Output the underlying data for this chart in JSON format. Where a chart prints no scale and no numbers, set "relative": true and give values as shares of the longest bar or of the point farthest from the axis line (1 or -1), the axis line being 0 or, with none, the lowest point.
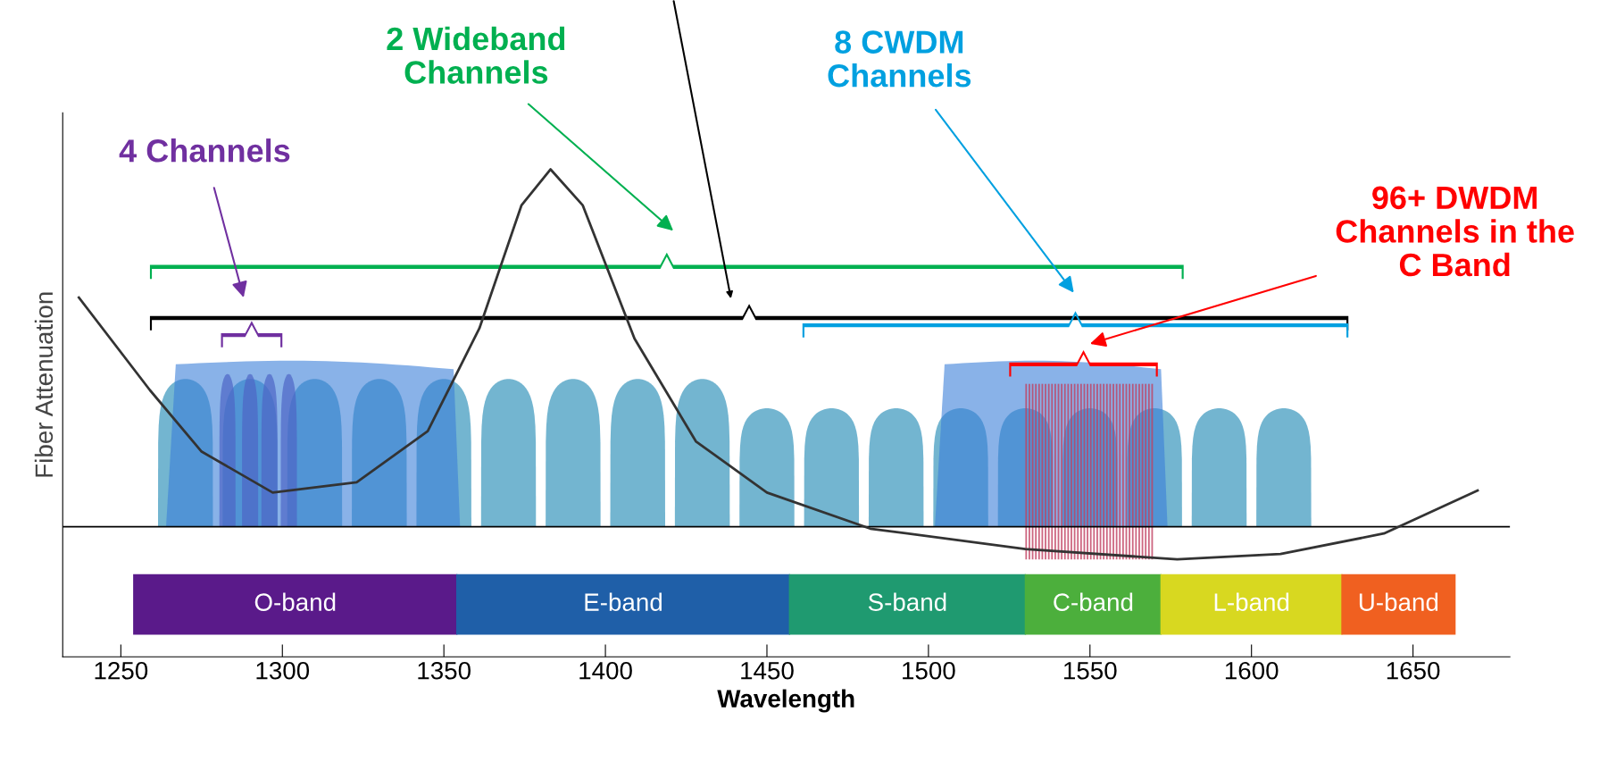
{
  "chart_data": {
    "type": "line",
    "relative": true,
    "xlabel": "Wavelength",
    "ylabel": "Fiber Attenuation",
    "x": [
      1237,
      1259,
      1275,
      1297,
      1323,
      1345,
      1361,
      1374,
      1383,
      1393,
      1409,
      1428,
      1450,
      1482,
      1530,
      1577,
      1609,
      1641,
      1670
    ],
    "series": [
      {
        "color": "#333333",
        "values": [
          0.737,
          0.547,
          0.421,
          0.337,
          0.358,
          0.463,
          0.674,
          0.926,
          1,
          0.926,
          0.653,
          0.442,
          0.337,
          0.263,
          0.221,
          0.2,
          0.211,
          0.253,
          0.341
        ]
      }
    ],
    "xlim": [
      1232,
      1680
    ],
    "xticks": [
      1250,
      1300,
      1350,
      1400,
      1450,
      1500,
      1550,
      1600,
      1650
    ],
    "tick_labels": "x",
    "grid": false,
    "ref_lines": [
      {
        "axis": "y",
        "value": 0.267,
        "color": "#000000"
      }
    ],
    "bands": [
      {
        "axis": "x",
        "from": 1254,
        "to": 1354,
        "label": "O-band",
        "color": "#5a1a8a"
      },
      {
        "axis": "x",
        "from": 1354,
        "to": 1457,
        "label": "E-band",
        "color": "#1f5fa8"
      },
      {
        "axis": "x",
        "from": 1457,
        "to": 1530,
        "label": "S-band",
        "color": "#1f9a70"
      },
      {
        "axis": "x",
        "from": 1530,
        "to": 1572,
        "label": "C-band",
        "color": "#4caf3c"
      },
      {
        "axis": "x",
        "from": 1572,
        "to": 1628,
        "label": "L-band",
        "color": "#d8d820"
      },
      {
        "axis": "x",
        "from": 1628,
        "to": 1663,
        "label": "U-band",
        "color": "#f06020"
      }
    ],
    "annotations": [
      "4 Channels",
      "2 Wideband\nChannels",
      "8 CWDM\nChannels",
      "96+ DWDM\nChannels in the\nC Band"
    ]
  }
}
